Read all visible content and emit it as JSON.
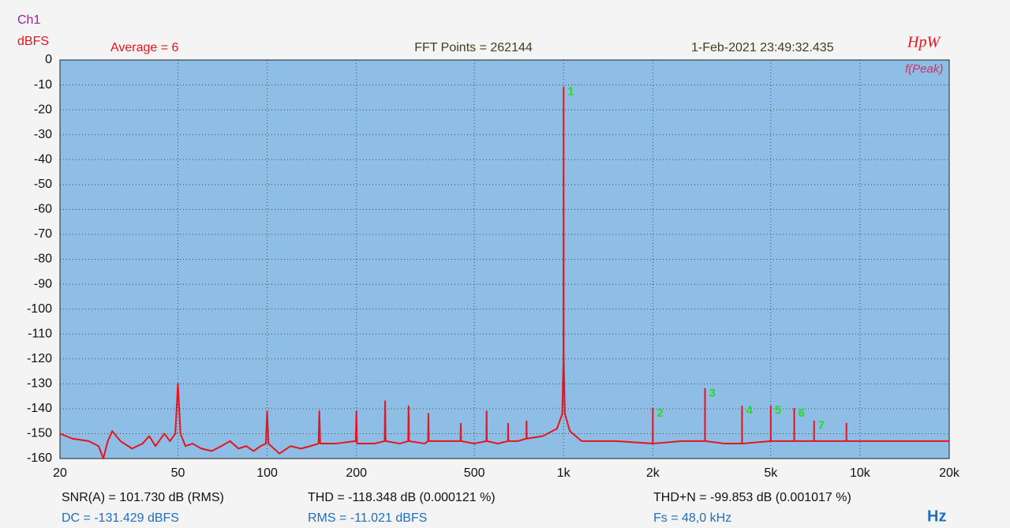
{
  "chart_data": {
    "type": "line",
    "channel": "Ch1",
    "y_label": "dBFS",
    "x_label": "Hz",
    "header": {
      "average": "Average = 6",
      "fft_points": "FFT Points = 262144",
      "timestamp": "1-Feb-2021 23:49:32.435",
      "brand": "HpW",
      "mode": "f(Peak)"
    },
    "measurements": [
      "SNR(A) = 101.730 dB (RMS)",
      "THD = -118.348 dB (0.000121 %)",
      "THD+N = -99.853 dB (0.001017 %)",
      "DC = -131.429 dBFS",
      "RMS = -11.021 dBFS",
      "Fs = 48,0 kHz"
    ],
    "log_x": true,
    "grid": true,
    "xlim": [
      20,
      20000
    ],
    "xticks": [
      20,
      50,
      100,
      200,
      500,
      {
        "value": 1000,
        "label": "1k"
      },
      {
        "value": 2000,
        "label": "2k"
      },
      {
        "value": 5000,
        "label": "5k"
      },
      {
        "value": 10000,
        "label": "10k"
      },
      {
        "value": 20000,
        "label": "20k"
      }
    ],
    "ylim": [
      -160,
      0
    ],
    "yticks": [
      0,
      -10,
      -20,
      -30,
      -40,
      -50,
      -60,
      -70,
      -80,
      -90,
      -100,
      -110,
      -120,
      -130,
      -140,
      -150,
      -160
    ],
    "series": [
      {
        "name": "Ch1",
        "color": "#e8141c",
        "x": [
          20,
          22,
          25,
          27,
          28,
          29,
          30,
          32,
          35,
          38,
          40,
          42,
          45,
          47,
          49,
          50,
          51,
          53,
          56,
          60,
          65,
          70,
          75,
          80,
          85,
          90,
          95,
          99,
          100,
          101,
          110,
          120,
          130,
          140,
          149,
          150,
          151,
          170,
          199,
          200,
          201,
          230,
          249,
          250,
          251,
          280,
          299,
          300,
          301,
          340,
          349,
          350,
          351,
          400,
          449,
          450,
          451,
          500,
          549,
          550,
          551,
          600,
          649,
          650,
          651,
          700,
          749,
          750,
          751,
          850,
          950,
          990,
          999,
          1000,
          1001,
          1010,
          1050,
          1150,
          1500,
          1999,
          2000,
          2001,
          2500,
          2999,
          3000,
          3001,
          3500,
          3999,
          4000,
          4001,
          4999,
          5000,
          5001,
          5999,
          6000,
          6001,
          6999,
          7000,
          7001,
          8000,
          8999,
          9000,
          9001,
          12000,
          16000,
          20000
        ],
        "values": [
          -150,
          -152,
          -153,
          -155,
          -160,
          -153,
          -149,
          -153,
          -156,
          -154,
          -151,
          -155,
          -150,
          -153,
          -150,
          -130,
          -150,
          -155,
          -154,
          -156,
          -157,
          -155,
          -153,
          -156,
          -155,
          -157,
          -155,
          -154,
          -141,
          -154,
          -158,
          -155,
          -156,
          -155,
          -154,
          -141,
          -154,
          -154,
          -153,
          -141,
          -154,
          -154,
          -153,
          -137,
          -153,
          -154,
          -153,
          -139,
          -153,
          -154,
          -153,
          -142,
          -153,
          -153,
          -153,
          -146,
          -153,
          -154,
          -153,
          -141,
          -153,
          -154,
          -153,
          -146,
          -153,
          -153,
          -152,
          -145,
          -152,
          -151,
          -148,
          -142,
          -120,
          -11,
          -120,
          -142,
          -149,
          -153,
          -153,
          -154,
          -140,
          -154,
          -153,
          -153,
          -132,
          -153,
          -154,
          -154,
          -139,
          -154,
          -153,
          -139,
          -153,
          -153,
          -140,
          -153,
          -153,
          -145,
          -153,
          -153,
          -153,
          -146,
          -153,
          -153,
          -153,
          -153
        ]
      }
    ],
    "peaks": [
      {
        "label": "1",
        "x": 1000,
        "y": -11
      },
      {
        "label": "2",
        "x": 2000,
        "y": -140
      },
      {
        "label": "3",
        "x": 3000,
        "y": -132
      },
      {
        "label": "4",
        "x": 4000,
        "y": -139
      },
      {
        "label": "5",
        "x": 5000,
        "y": -139
      },
      {
        "label": "6",
        "x": 6000,
        "y": -140
      },
      {
        "label": "7",
        "x": 7000,
        "y": -145
      }
    ]
  }
}
